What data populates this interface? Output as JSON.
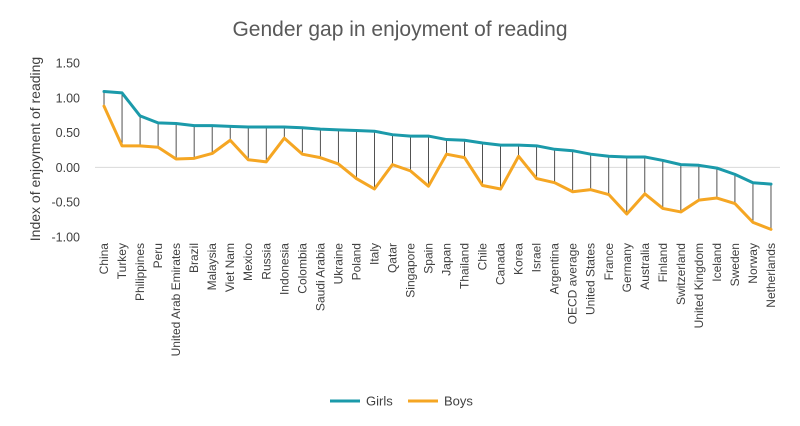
{
  "chart_data": {
    "type": "line",
    "title": "Gender gap in enjoyment of reading",
    "xlabel": "",
    "ylabel": "Index of enjoyment of reading",
    "ylim": [
      -1.0,
      1.5
    ],
    "yticks": [
      "1.50",
      "1.00",
      "0.50",
      "0.00",
      "-0.50",
      "-1.00"
    ],
    "ytick_values": [
      1.5,
      1.0,
      0.5,
      0.0,
      -0.5,
      -1.0
    ],
    "grid": false,
    "legend_position": "bottom",
    "drop_lines": true,
    "categories": [
      "China",
      "Turkey",
      "Philippines",
      "Peru",
      "United Arab Emirates",
      "Brazil",
      "Malaysia",
      "Viet Nam",
      "Mexico",
      "Russia",
      "Indonesia",
      "Colombia",
      "Saudi Arabia",
      "Ukraine",
      "Poland",
      "Italy",
      "Qatar",
      "Singapore",
      "Spain",
      "Japan",
      "Thailand",
      "Chile",
      "Canada",
      "Korea",
      "Israel",
      "Argentina",
      "OECD average",
      "United States",
      "France",
      "Germany",
      "Australia",
      "Finland",
      "Switzerland",
      "United Kingdom",
      "Iceland",
      "Sweden",
      "Norway",
      "Netherlands"
    ],
    "series": [
      {
        "name": "Girls",
        "color": "#1b9aaa",
        "values": [
          1.09,
          1.07,
          0.74,
          0.64,
          0.63,
          0.6,
          0.6,
          0.59,
          0.58,
          0.58,
          0.58,
          0.57,
          0.55,
          0.54,
          0.53,
          0.52,
          0.47,
          0.45,
          0.45,
          0.4,
          0.39,
          0.35,
          0.32,
          0.32,
          0.31,
          0.26,
          0.24,
          0.19,
          0.16,
          0.15,
          0.15,
          0.1,
          0.04,
          0.03,
          -0.01,
          -0.1,
          -0.22,
          -0.24
        ]
      },
      {
        "name": "Boys",
        "color": "#f5a623",
        "values": [
          0.88,
          0.31,
          0.31,
          0.29,
          0.12,
          0.13,
          0.2,
          0.39,
          0.11,
          0.08,
          0.42,
          0.19,
          0.14,
          0.05,
          -0.16,
          -0.31,
          0.04,
          -0.05,
          -0.27,
          0.19,
          0.14,
          -0.26,
          -0.31,
          0.16,
          -0.16,
          -0.22,
          -0.35,
          -0.32,
          -0.39,
          -0.67,
          -0.38,
          -0.59,
          -0.64,
          -0.47,
          -0.44,
          -0.52,
          -0.79,
          -0.89
        ]
      }
    ]
  }
}
